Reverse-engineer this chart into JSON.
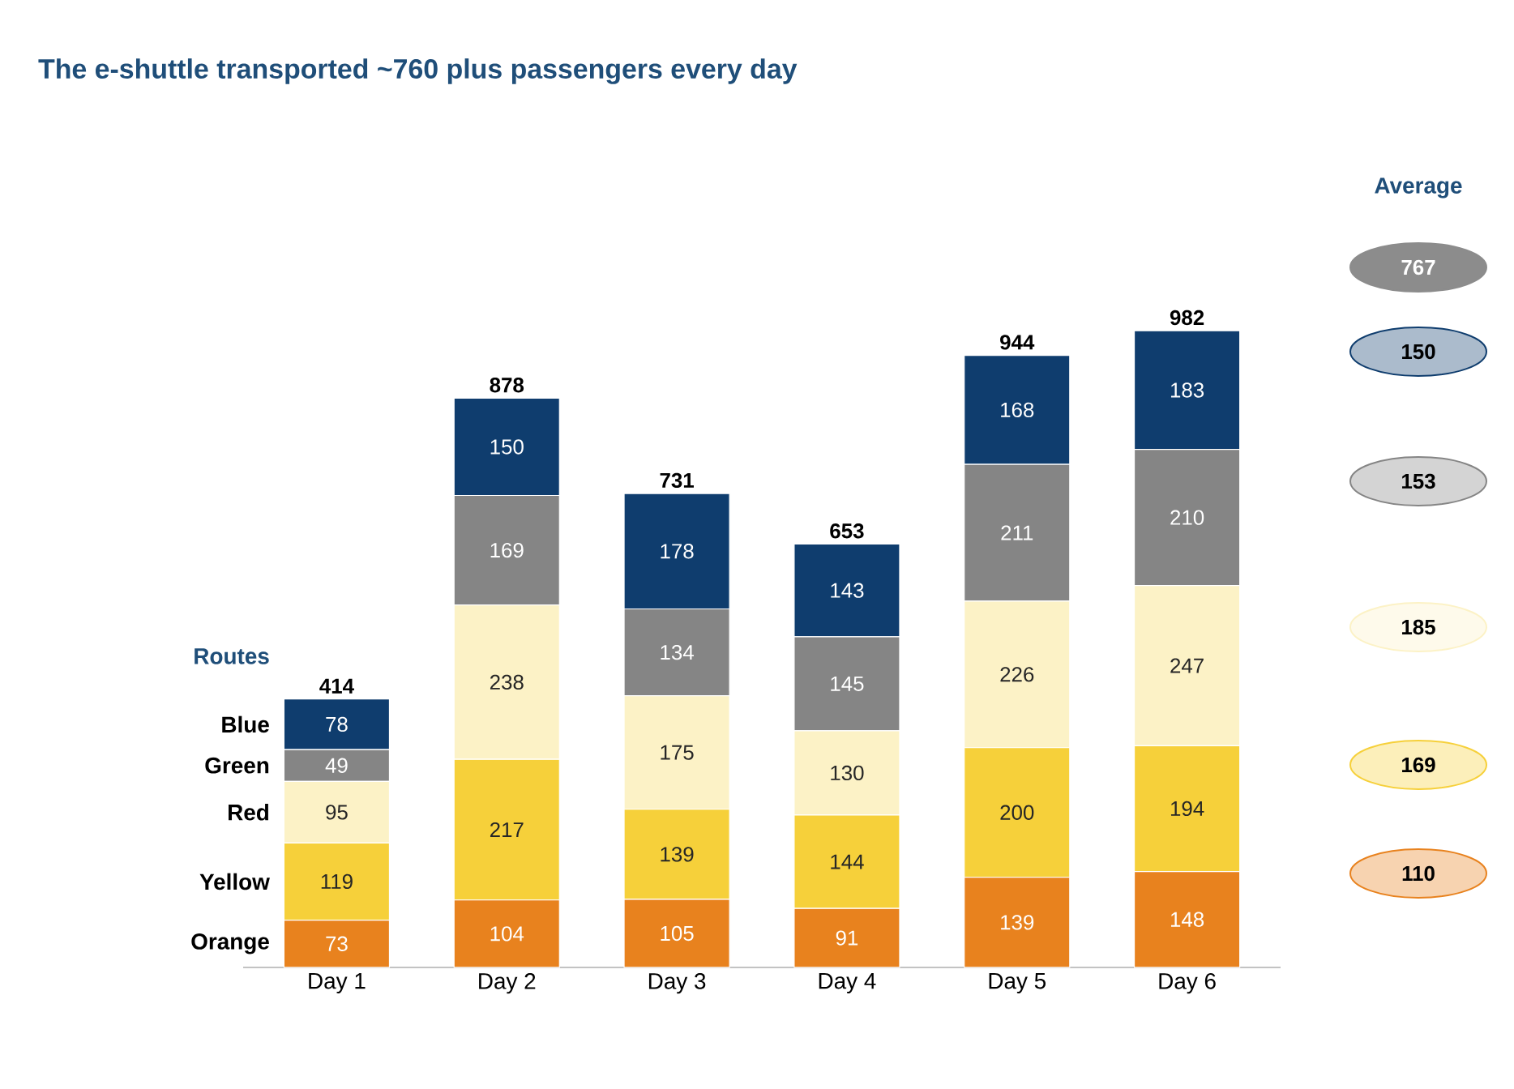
{
  "chart_data": {
    "type": "bar",
    "stacked": true,
    "title": "The e-shuttle transported ~760 plus passengers every day",
    "legend_title": "Routes",
    "legend": "left",
    "data_labels": true,
    "categories": [
      "Day 1",
      "Day 2",
      "Day 3",
      "Day 4",
      "Day 5",
      "Day 6"
    ],
    "series": [
      {
        "name": "Orange",
        "color": "#e8821e",
        "values": [
          73,
          104,
          105,
          91,
          139,
          148
        ]
      },
      {
        "name": "Yellow",
        "color": "#f6d03a",
        "values": [
          119,
          217,
          139,
          144,
          200,
          194
        ]
      },
      {
        "name": "Red",
        "color": "#fcf2c6",
        "values": [
          95,
          238,
          175,
          130,
          226,
          247
        ]
      },
      {
        "name": "Green",
        "color": "#858585",
        "values": [
          49,
          169,
          134,
          145,
          211,
          210
        ]
      },
      {
        "name": "Blue",
        "color": "#0f3d6e",
        "values": [
          78,
          150,
          178,
          143,
          168,
          183
        ]
      }
    ],
    "totals": [
      "414",
      "878",
      "731",
      "653",
      "944",
      "982"
    ],
    "annotations": [
      "Average",
      "767",
      "150",
      "153",
      "185",
      "169",
      "110"
    ]
  }
}
